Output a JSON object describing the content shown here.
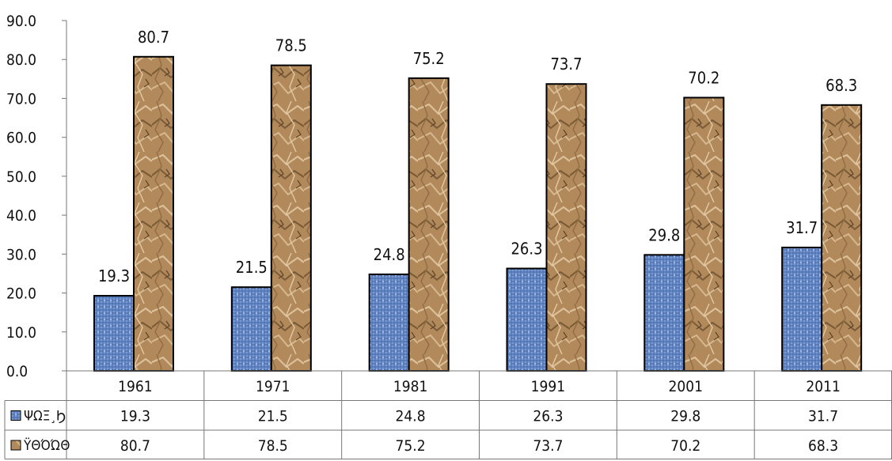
{
  "chart_data": {
    "type": "bar",
    "categories": [
      "1961",
      "1971",
      "1981",
      "1991",
      "2001",
      "2011"
    ],
    "series": [
      {
        "name": "ΨΩΞ¸Ϧ",
        "values": [
          19.3,
          21.5,
          24.8,
          26.3,
          29.8,
          31.7
        ],
        "color": "#5b7fc0",
        "texture": "woven-blue"
      },
      {
        "name": "ΫΘΌΏΘ",
        "values": [
          80.7,
          78.5,
          75.2,
          73.7,
          70.2,
          68.3
        ],
        "color": "#b08a5c",
        "texture": "crumpled-paper"
      }
    ],
    "ylim": [
      0,
      90
    ],
    "yticks": [
      "0.0",
      "10.0",
      "20.0",
      "30.0",
      "40.0",
      "50.0",
      "60.0",
      "70.0",
      "80.0",
      "90.0"
    ],
    "data_labels": [
      [
        "19.3",
        "21.5",
        "24.8",
        "26.3",
        "29.8",
        "31.7"
      ],
      [
        "80.7",
        "78.5",
        "75.2",
        "73.7",
        "70.2",
        "68.3"
      ]
    ],
    "data_table": true,
    "grid": false,
    "title": "",
    "xlabel": "",
    "ylabel": ""
  }
}
